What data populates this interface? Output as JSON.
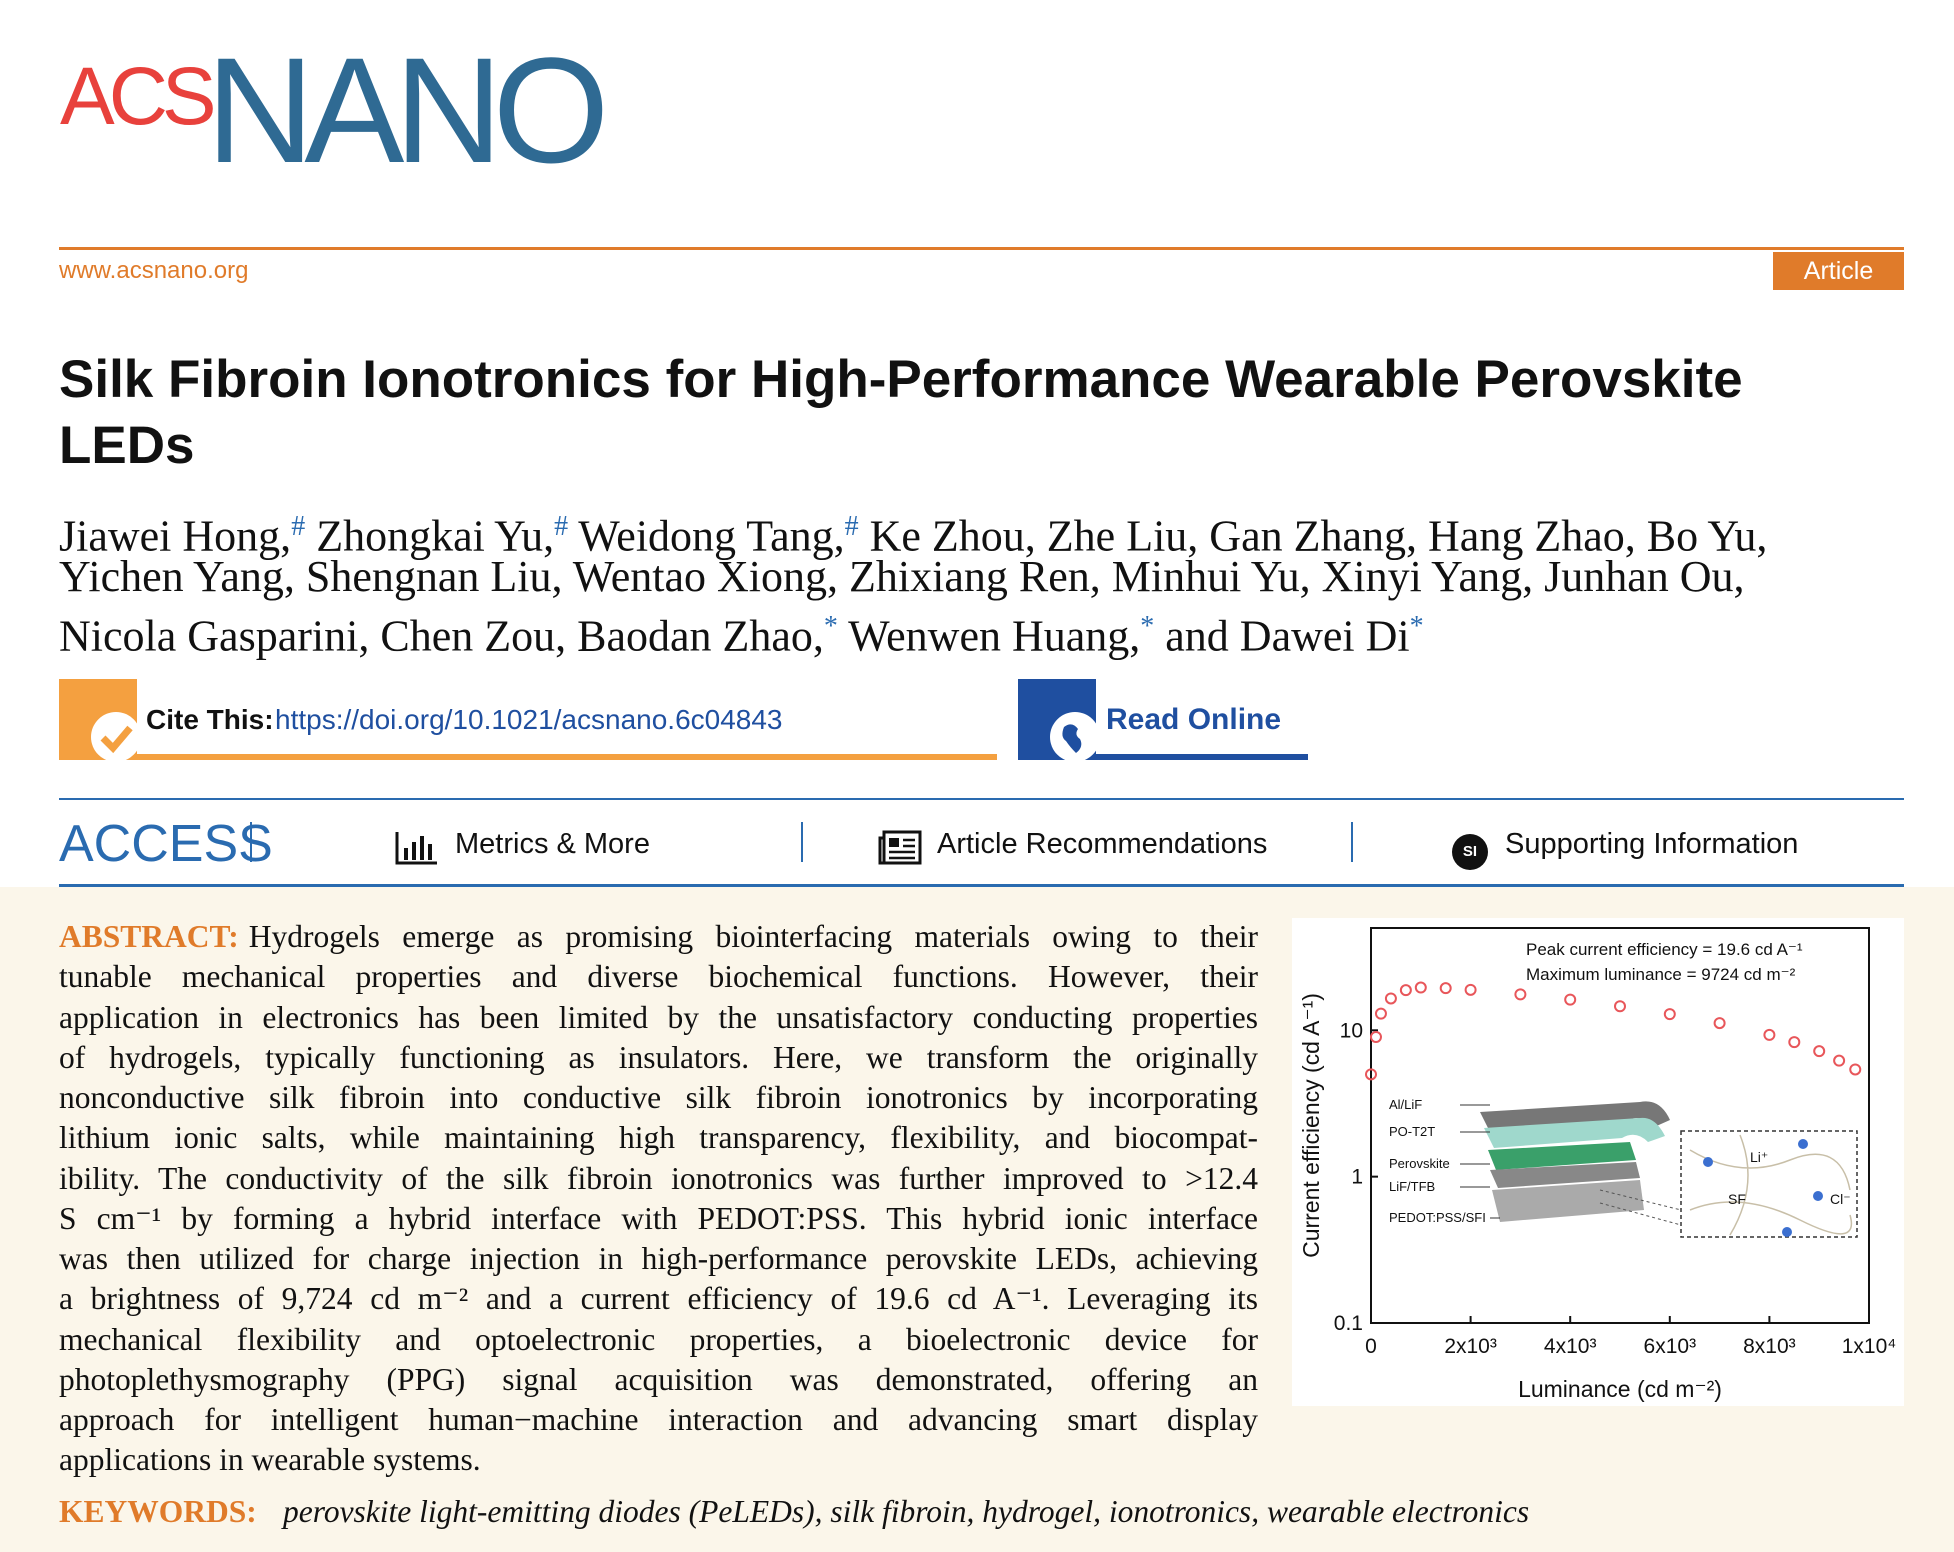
{
  "logo": {
    "acs": "ACS",
    "nano": "NANO"
  },
  "header": {
    "website": "www.acsnano.org",
    "article_type": "Article"
  },
  "title": [
    "Silk Fibroin Ionotronics for High-Performance Wearable Perovskite",
    "LEDs"
  ],
  "authors": [
    [
      {
        "text": "Jiawei Hong,",
        "sup": "#"
      },
      {
        "text": " Zhongkai Yu,",
        "sup": "#"
      },
      {
        "text": " Weidong Tang,",
        "sup": "#"
      },
      {
        "text": " Ke Zhou, Zhe Liu, Gan Zhang, Hang Zhao, Bo Yu,"
      }
    ],
    [
      {
        "text": "Yichen Yang, Shengnan Liu, Wentao Xiong, Zhixiang Ren, Minhui Yu, Xinyi Yang, Junhan Ou,"
      }
    ],
    [
      {
        "text": "Nicola Gasparini, Chen Zou, Baodan Zhao,",
        "sup": "*"
      },
      {
        "text": " Wenwen Huang,",
        "sup": "*"
      },
      {
        "text": " and Dawei Di",
        "sup": "*"
      }
    ]
  ],
  "cite": {
    "label": "Cite This:",
    "doi": "https://doi.org/10.1021/acsnano.6c04843",
    "read_online": "Read Online"
  },
  "access_bar": {
    "access": "ACCESS",
    "metrics": "Metrics & More",
    "recommendations": "Article Recommendations",
    "si_icon": "SI",
    "supporting": "Supporting Information"
  },
  "abstract": {
    "label": "ABSTRACT:",
    "lines": [
      "Hydrogels emerge as promising biointerfacing materials owing to their",
      "tunable mechanical properties and diverse biochemical functions. However, their",
      "application in electronics has been limited by the unsatisfactory conducting properties",
      "of hydrogels, typically functioning as insulators. Here, we transform the originally",
      "nonconductive silk fibroin into conductive silk fibroin ionotronics by incorporating",
      "lithium ionic salts, while maintaining high transparency, flexibility, and biocompat-",
      "ibility. The conductivity of the silk fibroin ionotronics was further improved to >12.4",
      "S cm⁻¹ by forming a hybrid interface with PEDOT:PSS. This hybrid ionic interface",
      "was then utilized for charge injection in high-performance perovskite LEDs, achieving",
      "a brightness of 9,724 cd m⁻² and a current efficiency of 19.6 cd A⁻¹. Leveraging its",
      "mechanical flexibility and optoelectronic properties, a bioelectronic device for",
      "photoplethysmography (PPG) signal acquisition was demonstrated, offering an",
      "approach for intelligent human−machine interaction and advancing smart display",
      "applications in wearable systems."
    ]
  },
  "keywords": {
    "label": "KEYWORDS:",
    "text": "perovskite light-emitting diodes (PeLEDs), silk fibroin, hydrogel, ionotronics, wearable electronics"
  },
  "toc_inset": {
    "layers": [
      "Al/LiF",
      "PO-T2T",
      "Perovskite",
      "LiF/TFB",
      "PEDOT:PSS/SFI"
    ],
    "ions": [
      "Li⁺",
      "SF",
      "Cl⁻"
    ]
  },
  "chart_data": {
    "type": "scatter",
    "x": [
      0,
      100,
      200,
      400,
      700,
      1000,
      1500,
      2000,
      3000,
      4000,
      5000,
      6000,
      7000,
      8000,
      8500,
      9000,
      9400,
      9724
    ],
    "values": [
      5,
      9,
      13,
      16.5,
      18.8,
      19.6,
      19.4,
      18.9,
      17.6,
      16.2,
      14.6,
      12.9,
      11.2,
      9.3,
      8.3,
      7.2,
      6.2,
      5.4
    ],
    "color": "#e8565a",
    "xlim": [
      0,
      10000
    ],
    "ylim": [
      0.1,
      50
    ],
    "log_y": true,
    "xticks": [
      0,
      {
        "value": 2000,
        "label": "2x10³"
      },
      {
        "value": 4000,
        "label": "4x10³"
      },
      {
        "value": 6000,
        "label": "6x10³"
      },
      {
        "value": 8000,
        "label": "8x10³"
      },
      {
        "value": 10000,
        "label": "1x10⁴"
      }
    ],
    "yticks": [
      0.1,
      1,
      10
    ],
    "xlabel": "Luminance (cd m⁻²)",
    "ylabel": "Current efficiency (cd A⁻¹)",
    "annotations": [
      "Peak current efficiency = 19.6 cd A⁻¹",
      "Maximum luminance = 9724 cd m⁻²"
    ]
  }
}
